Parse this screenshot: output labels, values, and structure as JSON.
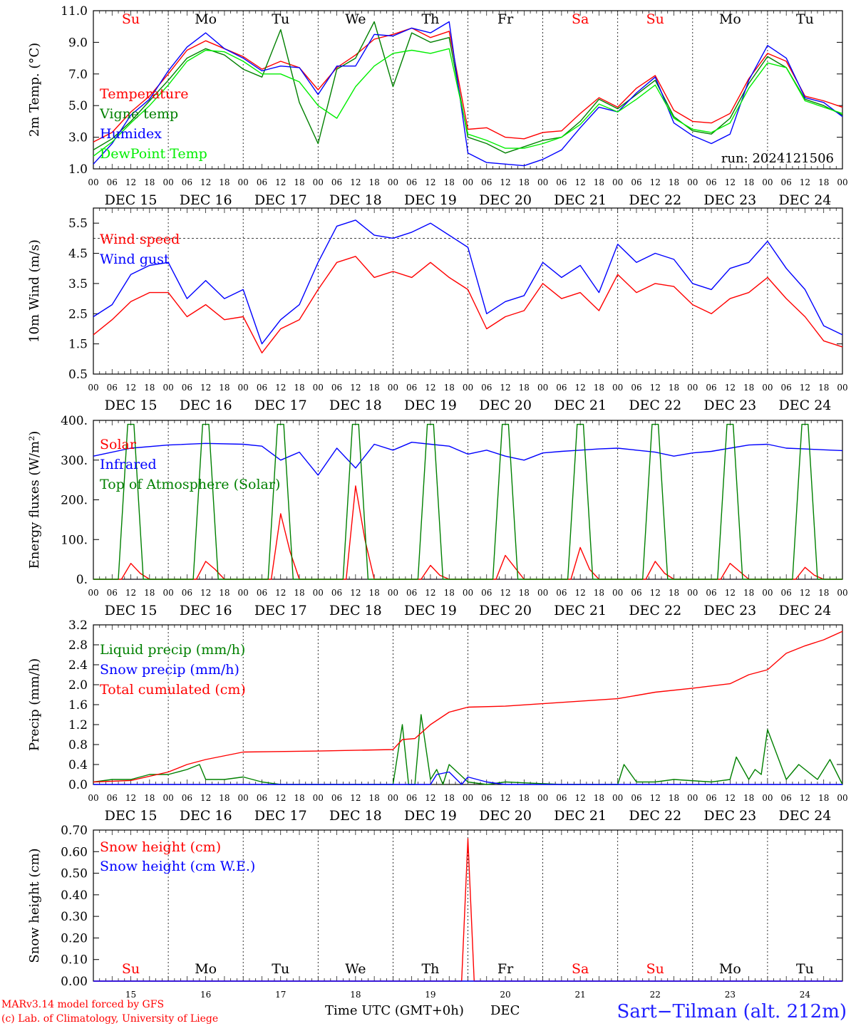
{
  "footer": {
    "model": "MARv3.14 model forced by GFS",
    "credit": "(c) Lab. of Climatology, University of Liege",
    "time_axis": "Time UTC (GMT+0h)",
    "month": "DEC",
    "station": "Sart−Tilman (alt. 212m)"
  },
  "colors": {
    "red": "#ff0000",
    "green": "#008000",
    "blue": "#0000ff",
    "lightgreen": "#00ee00",
    "grid": "#000000"
  },
  "day_labels": [
    "Su",
    "Mo",
    "Tu",
    "We",
    "Th",
    "Fr",
    "Sa",
    "Su",
    "Mo",
    "Tu"
  ],
  "weekend_flags": [
    true,
    false,
    false,
    false,
    false,
    false,
    true,
    true,
    false,
    false
  ],
  "date_labels": [
    "DEC 15",
    "DEC 16",
    "DEC 17",
    "DEC 18",
    "DEC 19",
    "DEC 20",
    "DEC 21",
    "DEC 22",
    "DEC 23",
    "DEC 24"
  ],
  "hour_labels": [
    "00",
    "06",
    "12",
    "18"
  ],
  "bottom_day_numbers": [
    "15",
    "16",
    "17",
    "18",
    "19",
    "20",
    "21",
    "22",
    "23",
    "24"
  ],
  "chart_data": [
    {
      "type": "line",
      "ylabel": "2m Temp. (°C)",
      "ylim": [
        1.0,
        11.0
      ],
      "yticks": [
        "1.0",
        "3.0",
        "5.0",
        "7.0",
        "9.0",
        "11.0"
      ],
      "annotation": "run: 2024121506",
      "x_unit": "hours from DEC 15 00 UTC",
      "series": [
        {
          "name": "Temperature",
          "color": "red",
          "x": [
            0,
            6,
            12,
            18,
            24,
            30,
            36,
            42,
            48,
            54,
            60,
            66,
            72,
            78,
            84,
            90,
            96,
            102,
            108,
            114,
            120,
            126,
            132,
            138,
            144,
            150,
            156,
            162,
            168,
            174,
            180,
            186,
            192,
            198,
            204,
            210,
            216,
            222,
            228,
            234,
            240
          ],
          "values": [
            2.7,
            3.3,
            4.6,
            5.6,
            7.0,
            8.5,
            9.1,
            8.6,
            8.1,
            7.3,
            7.8,
            7.4,
            6.0,
            7.4,
            8.2,
            9.2,
            9.5,
            9.9,
            9.3,
            9.7,
            3.5,
            3.6,
            3.0,
            2.9,
            3.3,
            3.4,
            4.5,
            5.5,
            4.9,
            6.1,
            6.9,
            4.7,
            4.0,
            3.9,
            4.5,
            6.7,
            8.3,
            7.8,
            5.6,
            5.3,
            4.9
          ]
        },
        {
          "name": "Vigne temp",
          "color": "green",
          "x": [
            0,
            6,
            12,
            18,
            24,
            30,
            36,
            42,
            48,
            54,
            60,
            66,
            72,
            78,
            84,
            90,
            96,
            102,
            108,
            114,
            120,
            126,
            132,
            138,
            144,
            150,
            156,
            162,
            168,
            174,
            180,
            186,
            192,
            198,
            204,
            210,
            216,
            222,
            228,
            234,
            240
          ],
          "values": [
            2.2,
            2.9,
            4.0,
            5.3,
            6.6,
            8.0,
            8.6,
            8.2,
            7.3,
            6.8,
            9.8,
            5.2,
            2.6,
            7.3,
            8.0,
            10.3,
            6.2,
            9.6,
            9.0,
            9.3,
            3.0,
            2.6,
            2.0,
            2.4,
            2.8,
            3.0,
            4.0,
            5.4,
            4.8,
            5.7,
            6.6,
            4.3,
            3.4,
            3.2,
            4.2,
            6.4,
            8.1,
            7.4,
            5.4,
            5.0,
            4.4
          ]
        },
        {
          "name": "Humidex",
          "color": "blue",
          "x": [
            0,
            6,
            12,
            18,
            24,
            30,
            36,
            42,
            48,
            54,
            60,
            66,
            72,
            78,
            84,
            90,
            96,
            102,
            108,
            114,
            120,
            126,
            132,
            138,
            144,
            150,
            156,
            162,
            168,
            174,
            180,
            186,
            192,
            198,
            204,
            210,
            216,
            222,
            228,
            234,
            240
          ],
          "values": [
            1.3,
            2.6,
            4.4,
            5.4,
            7.2,
            8.7,
            9.6,
            8.6,
            8.0,
            7.2,
            7.5,
            7.4,
            5.7,
            7.5,
            7.5,
            9.5,
            9.4,
            9.9,
            9.6,
            10.3,
            2.0,
            1.4,
            1.3,
            1.2,
            1.6,
            2.2,
            3.6,
            4.9,
            4.6,
            5.8,
            6.8,
            3.9,
            3.1,
            2.6,
            3.2,
            6.6,
            8.8,
            8.0,
            5.5,
            5.2,
            4.3
          ]
        },
        {
          "name": "DewPoint Temp",
          "color": "lightgreen",
          "x": [
            0,
            6,
            12,
            18,
            24,
            30,
            36,
            42,
            48,
            54,
            60,
            66,
            72,
            78,
            84,
            90,
            96,
            102,
            108,
            114,
            120,
            126,
            132,
            138,
            144,
            150,
            156,
            162,
            168,
            174,
            180,
            186,
            192,
            198,
            204,
            210,
            216,
            222,
            228,
            234,
            240
          ],
          "values": [
            1.8,
            2.7,
            3.9,
            5.0,
            6.3,
            7.8,
            8.5,
            8.4,
            7.8,
            7.0,
            7.0,
            6.5,
            5.0,
            4.2,
            6.2,
            7.5,
            8.3,
            8.5,
            8.3,
            8.6,
            3.2,
            2.8,
            2.3,
            2.3,
            2.6,
            3.0,
            3.8,
            5.1,
            4.6,
            5.4,
            6.3,
            4.2,
            3.5,
            3.3,
            3.9,
            6.1,
            7.7,
            7.4,
            5.3,
            4.9,
            4.5
          ]
        }
      ]
    },
    {
      "type": "line",
      "ylabel": "10m Wind (m/s)",
      "ylim": [
        0.5,
        6.0
      ],
      "yticks": [
        "0.5",
        "1.5",
        "2.5",
        "3.5",
        "4.5",
        "5.5"
      ],
      "reference_line": 5.0,
      "x_unit": "hours from DEC 15 00 UTC",
      "series": [
        {
          "name": "Wind speed",
          "color": "red",
          "x": [
            0,
            6,
            12,
            18,
            24,
            30,
            36,
            42,
            48,
            54,
            60,
            66,
            72,
            78,
            84,
            90,
            96,
            102,
            108,
            114,
            120,
            126,
            132,
            138,
            144,
            150,
            156,
            162,
            168,
            174,
            180,
            186,
            192,
            198,
            204,
            210,
            216,
            222,
            228,
            234,
            240
          ],
          "values": [
            1.8,
            2.3,
            2.9,
            3.2,
            3.2,
            2.4,
            2.8,
            2.3,
            2.4,
            1.2,
            2.0,
            2.3,
            3.3,
            4.2,
            4.4,
            3.7,
            3.9,
            3.7,
            4.2,
            3.7,
            3.3,
            2.0,
            2.4,
            2.6,
            3.5,
            3.0,
            3.2,
            2.6,
            3.8,
            3.2,
            3.5,
            3.4,
            2.8,
            2.5,
            3.0,
            3.2,
            3.7,
            3.0,
            2.4,
            1.6,
            1.4
          ]
        },
        {
          "name": "Wind gust",
          "color": "blue",
          "x": [
            0,
            6,
            12,
            18,
            24,
            30,
            36,
            42,
            48,
            54,
            60,
            66,
            72,
            78,
            84,
            90,
            96,
            102,
            108,
            114,
            120,
            126,
            132,
            138,
            144,
            150,
            156,
            162,
            168,
            174,
            180,
            186,
            192,
            198,
            204,
            210,
            216,
            222,
            228,
            234,
            240
          ],
          "values": [
            2.4,
            2.8,
            3.8,
            4.1,
            4.2,
            3.0,
            3.6,
            3.0,
            3.3,
            1.5,
            2.3,
            2.8,
            4.2,
            5.4,
            5.6,
            5.1,
            5.0,
            5.2,
            5.5,
            5.1,
            4.7,
            2.5,
            2.9,
            3.1,
            4.2,
            3.7,
            4.1,
            3.2,
            4.8,
            4.2,
            4.5,
            4.3,
            3.5,
            3.3,
            4.0,
            4.2,
            4.9,
            4.0,
            3.3,
            2.1,
            1.8
          ]
        }
      ]
    },
    {
      "type": "line",
      "ylabel": "Energy fluxes (W/m²)",
      "ylim": [
        0,
        400
      ],
      "yticks": [
        "0.",
        "100.",
        "200.",
        "300.",
        "400."
      ],
      "x_unit": "hours from DEC 15 00 UTC",
      "series": [
        {
          "name": "Solar",
          "color": "red",
          "x": [
            0,
            9,
            12,
            15,
            18,
            33,
            36,
            39,
            42,
            57,
            60,
            63,
            66,
            81,
            84,
            87,
            90,
            105,
            108,
            111,
            114,
            129,
            132,
            135,
            138,
            153,
            156,
            159,
            162,
            177,
            180,
            183,
            186,
            201,
            204,
            207,
            210,
            225,
            228,
            231,
            234,
            240
          ],
          "values": [
            0,
            0,
            40,
            15,
            0,
            0,
            45,
            25,
            0,
            0,
            165,
            70,
            0,
            0,
            235,
            100,
            0,
            0,
            35,
            10,
            0,
            0,
            60,
            30,
            0,
            0,
            80,
            25,
            0,
            0,
            45,
            15,
            0,
            0,
            40,
            20,
            0,
            0,
            30,
            10,
            0,
            0
          ]
        },
        {
          "name": "Infrared",
          "color": "blue",
          "x": [
            0,
            12,
            24,
            36,
            48,
            54,
            60,
            66,
            72,
            78,
            84,
            90,
            96,
            102,
            108,
            114,
            120,
            126,
            132,
            138,
            144,
            150,
            156,
            162,
            168,
            174,
            180,
            186,
            192,
            198,
            204,
            210,
            216,
            222,
            228,
            234,
            240
          ],
          "values": [
            310,
            330,
            338,
            342,
            340,
            335,
            300,
            320,
            262,
            330,
            280,
            340,
            325,
            345,
            340,
            335,
            315,
            325,
            310,
            300,
            318,
            322,
            325,
            328,
            330,
            325,
            320,
            310,
            318,
            322,
            330,
            338,
            340,
            330,
            328,
            326,
            324
          ]
        },
        {
          "name": "Top of Atmosphere (Solar)",
          "color": "green",
          "x": [
            0,
            8,
            11,
            13,
            16,
            32,
            35,
            37,
            40,
            56,
            59,
            61,
            64,
            80,
            83,
            85,
            88,
            104,
            107,
            109,
            112,
            128,
            131,
            133,
            136,
            152,
            155,
            157,
            160,
            176,
            179,
            181,
            184,
            200,
            203,
            205,
            208,
            224,
            227,
            229,
            232,
            240
          ],
          "values": [
            0,
            0,
            390,
            390,
            0,
            0,
            390,
            390,
            0,
            0,
            390,
            390,
            0,
            0,
            390,
            390,
            0,
            0,
            390,
            390,
            0,
            0,
            390,
            390,
            0,
            0,
            390,
            390,
            0,
            0,
            390,
            390,
            0,
            0,
            390,
            390,
            0,
            0,
            390,
            390,
            0,
            0
          ]
        }
      ]
    },
    {
      "type": "line",
      "ylabel": "Precip (mm/h)",
      "ylim": [
        0.0,
        3.2
      ],
      "yticks": [
        "0.0",
        "0.4",
        "0.8",
        "1.2",
        "1.6",
        "2.0",
        "2.4",
        "2.8",
        "3.2"
      ],
      "x_unit": "hours from DEC 15 00 UTC",
      "series": [
        {
          "name": "Liquid precip (mm/h)",
          "color": "green",
          "x": [
            0,
            6,
            12,
            18,
            24,
            30,
            34,
            36,
            42,
            48,
            54,
            60,
            96,
            99,
            101,
            103,
            105,
            108,
            110,
            112,
            114,
            120,
            126,
            132,
            150,
            168,
            170,
            174,
            180,
            186,
            198,
            204,
            206,
            210,
            212,
            214,
            216,
            222,
            226,
            232,
            236,
            240
          ],
          "values": [
            0.05,
            0.1,
            0.1,
            0.2,
            0.2,
            0.3,
            0.4,
            0.1,
            0.1,
            0.15,
            0.05,
            0.0,
            0.0,
            1.2,
            0.0,
            0.0,
            1.4,
            0.1,
            0.3,
            0.0,
            0.4,
            0.05,
            0.0,
            0.05,
            0.0,
            0.0,
            0.4,
            0.05,
            0.05,
            0.1,
            0.05,
            0.1,
            0.55,
            0.1,
            0.3,
            0.2,
            1.1,
            0.1,
            0.4,
            0.1,
            0.5,
            0.0
          ]
        },
        {
          "name": "Snow precip (mm/h)",
          "color": "blue",
          "x": [
            0,
            96,
            108,
            110,
            114,
            118,
            120,
            126,
            132,
            240
          ],
          "values": [
            0.0,
            0.0,
            0.0,
            0.2,
            0.25,
            0.0,
            0.15,
            0.05,
            0.0,
            0.0
          ]
        },
        {
          "name": "Total cumulated (cm)",
          "color": "red",
          "x": [
            0,
            12,
            24,
            30,
            36,
            48,
            72,
            96,
            99,
            103,
            108,
            114,
            120,
            132,
            144,
            168,
            180,
            192,
            204,
            210,
            216,
            222,
            228,
            234,
            240
          ],
          "values": [
            0.05,
            0.08,
            0.25,
            0.4,
            0.5,
            0.65,
            0.67,
            0.7,
            0.9,
            0.92,
            1.2,
            1.45,
            1.55,
            1.57,
            1.62,
            1.72,
            1.85,
            1.93,
            2.02,
            2.2,
            2.3,
            2.63,
            2.78,
            2.9,
            3.07
          ]
        }
      ]
    },
    {
      "type": "line",
      "ylabel": "Snow height (cm)",
      "ylim": [
        0.0,
        0.7
      ],
      "yticks": [
        "0.00",
        "0.10",
        "0.20",
        "0.30",
        "0.40",
        "0.50",
        "0.60",
        "0.70"
      ],
      "x_unit": "hours from DEC 15 00 UTC",
      "series": [
        {
          "name": "Snow height (cm)",
          "color": "red",
          "x": [
            0,
            118,
            120,
            122,
            240
          ],
          "values": [
            0.0,
            0.0,
            0.66,
            0.0,
            0.0
          ]
        },
        {
          "name": "Snow height (cm W.E.)",
          "color": "blue",
          "x": [
            0,
            240
          ],
          "values": [
            0.0,
            0.0
          ]
        }
      ]
    }
  ]
}
